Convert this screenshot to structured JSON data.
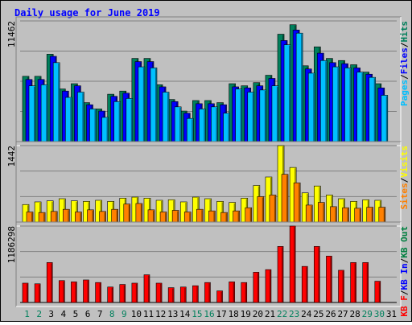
{
  "title": "Daily usage for June 2019",
  "colors": {
    "hits": "#00805c",
    "files": "#0000ff",
    "pages": "#00c0ff",
    "visits": "#ffff00",
    "sites": "#ff8000",
    "kbin": "#0000ff",
    "kbout": "#008040",
    "kbf": "#ff0000",
    "weekend": "#00805c",
    "weekday": "#000000",
    "background": "#c0c0c0",
    "title": "#0000ff"
  },
  "chart_data": [
    {
      "type": "bar",
      "panel": "hits-files-pages",
      "ymax_label": "11462",
      "ylim": [
        0,
        11462
      ],
      "right_labels": [
        {
          "text": "Pages",
          "color": "#00c0ff"
        },
        {
          "text": "/",
          "color": "#000000"
        },
        {
          "text": "Files",
          "color": "#0000ff"
        },
        {
          "text": "/",
          "color": "#000000"
        },
        {
          "text": "Hits",
          "color": "#00805c"
        }
      ],
      "categories": [
        "1",
        "2",
        "3",
        "4",
        "5",
        "6",
        "7",
        "8",
        "9",
        "10",
        "11",
        "12",
        "13",
        "14",
        "15",
        "16",
        "17",
        "18",
        "19",
        "20",
        "21",
        "22",
        "23",
        "24",
        "25",
        "26",
        "27",
        "28",
        "29",
        "30",
        "31"
      ],
      "series": [
        {
          "name": "Hits",
          "values": [
            6200,
            6200,
            8300,
            5000,
            5500,
            3700,
            3100,
            4500,
            4800,
            7900,
            7900,
            5400,
            4000,
            2900,
            3900,
            3900,
            3700,
            5500,
            5300,
            5600,
            6300,
            10200,
            11100,
            7200,
            9000,
            7900,
            7700,
            7300,
            6600,
            5500,
            0
          ]
        },
        {
          "name": "Files",
          "values": [
            5900,
            5900,
            8100,
            4800,
            5300,
            3500,
            2900,
            4300,
            4600,
            7600,
            7600,
            5200,
            3800,
            2700,
            3600,
            3600,
            3500,
            5200,
            5100,
            5300,
            6000,
            9600,
            10600,
            6900,
            8400,
            7500,
            7400,
            7000,
            6400,
            5100,
            0
          ]
        },
        {
          "name": "Pages",
          "values": [
            5300,
            5400,
            7500,
            4200,
            4700,
            3100,
            2300,
            3800,
            4100,
            7100,
            7000,
            4700,
            3300,
            2200,
            3100,
            3300,
            2700,
            5000,
            4700,
            4900,
            5300,
            9200,
            10300,
            6500,
            7700,
            7100,
            7000,
            6600,
            6100,
            4400,
            0
          ]
        }
      ]
    },
    {
      "type": "bar",
      "panel": "visits-sites",
      "ymax_label": "1442",
      "ylim": [
        0,
        1442
      ],
      "right_labels": [
        {
          "text": "Sites",
          "color": "#ff8000"
        },
        {
          "text": "/",
          "color": "#000000"
        },
        {
          "text": "Visits",
          "color": "#ffff00"
        }
      ],
      "categories": [
        "1",
        "2",
        "3",
        "4",
        "5",
        "6",
        "7",
        "8",
        "9",
        "10",
        "11",
        "12",
        "13",
        "14",
        "15",
        "16",
        "17",
        "18",
        "19",
        "20",
        "21",
        "22",
        "23",
        "24",
        "25",
        "26",
        "27",
        "28",
        "29",
        "30",
        "31"
      ],
      "series": [
        {
          "name": "Visits",
          "values": [
            330,
            380,
            400,
            440,
            400,
            390,
            410,
            390,
            450,
            470,
            450,
            410,
            420,
            380,
            470,
            440,
            390,
            370,
            450,
            690,
            850,
            1442,
            1030,
            550,
            680,
            510,
            440,
            390,
            420,
            410,
            0
          ]
        },
        {
          "name": "Sites",
          "values": [
            190,
            180,
            200,
            240,
            190,
            230,
            200,
            240,
            340,
            350,
            230,
            190,
            220,
            190,
            240,
            210,
            180,
            210,
            270,
            480,
            510,
            900,
            740,
            320,
            370,
            290,
            270,
            260,
            280,
            280,
            0
          ]
        }
      ]
    },
    {
      "type": "bar",
      "panel": "kbytes",
      "ymax_label": "1186298",
      "ylim": [
        0,
        1186298
      ],
      "right_labels": [
        {
          "text": "KB F",
          "color": "#ff0000"
        },
        {
          "text": "/",
          "color": "#000000"
        },
        {
          "text": "KB In",
          "color": "#0000ff"
        },
        {
          "text": "/",
          "color": "#000000"
        },
        {
          "text": "KB Out",
          "color": "#008040"
        }
      ],
      "categories": [
        "1",
        "2",
        "3",
        "4",
        "5",
        "6",
        "7",
        "8",
        "9",
        "10",
        "11",
        "12",
        "13",
        "14",
        "15",
        "16",
        "17",
        "18",
        "19",
        "20",
        "21",
        "22",
        "23",
        "24",
        "25",
        "26",
        "27",
        "28",
        "29",
        "30",
        "31"
      ],
      "series": [
        {
          "name": "KB F",
          "values": [
            300000,
            290000,
            620000,
            340000,
            320000,
            350000,
            310000,
            240000,
            280000,
            300000,
            430000,
            300000,
            230000,
            240000,
            260000,
            310000,
            180000,
            320000,
            310000,
            470000,
            510000,
            870000,
            1186298,
            560000,
            870000,
            720000,
            500000,
            620000,
            620000,
            330000,
            0
          ]
        }
      ]
    }
  ]
}
